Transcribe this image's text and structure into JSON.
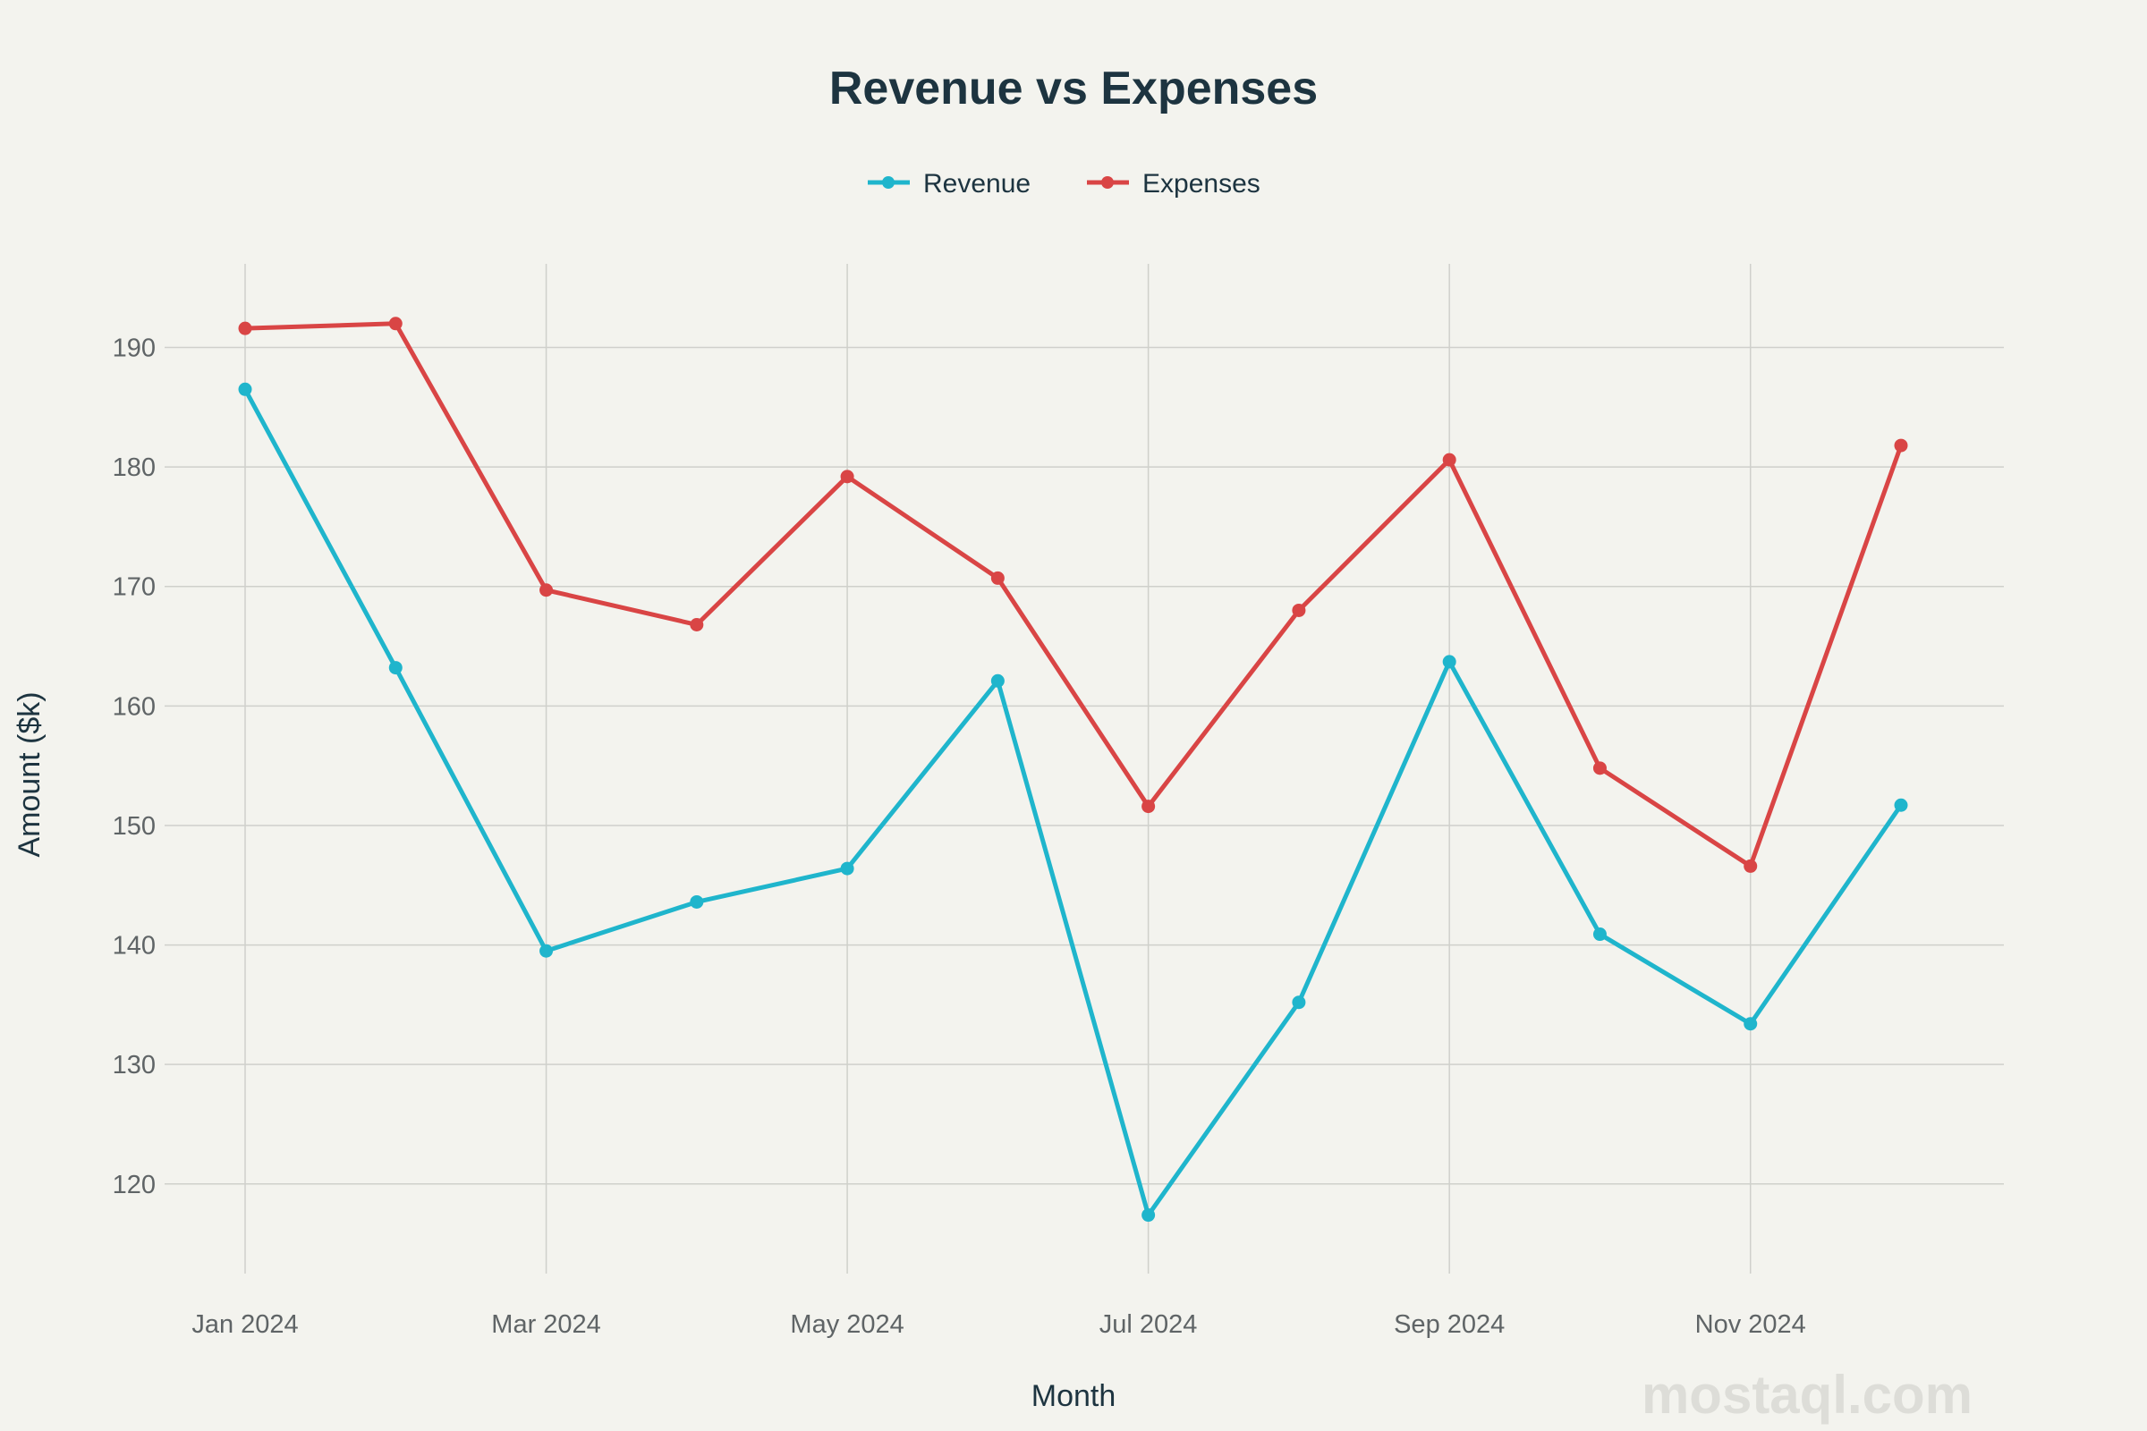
{
  "chart_data": {
    "type": "line",
    "title": "Revenue vs Expenses",
    "xlabel": "Month",
    "ylabel": "Amount ($k)",
    "x": [
      "Jan 2024",
      "Feb 2024",
      "Mar 2024",
      "Apr 2024",
      "May 2024",
      "Jun 2024",
      "Jul 2024",
      "Aug 2024",
      "Sep 2024",
      "Oct 2024",
      "Nov 2024",
      "Dec 2024"
    ],
    "x_tick_labels": [
      "Jan 2024",
      "Mar 2024",
      "May 2024",
      "Jul 2024",
      "Sep 2024",
      "Nov 2024"
    ],
    "y_ticks": [
      120,
      130,
      140,
      150,
      160,
      170,
      180,
      190
    ],
    "ylim": [
      112.5,
      197
    ],
    "grid": true,
    "legend_position": "top-center",
    "series": [
      {
        "name": "Revenue",
        "color": "#1fb5cc",
        "values": [
          186.5,
          163.2,
          139.5,
          143.6,
          146.4,
          162.1,
          117.4,
          135.2,
          163.7,
          140.9,
          133.4,
          151.7
        ]
      },
      {
        "name": "Expenses",
        "color": "#d94545",
        "values": [
          191.6,
          192.0,
          169.7,
          166.8,
          179.2,
          170.7,
          151.6,
          168.0,
          180.6,
          154.8,
          146.6,
          181.8
        ]
      }
    ]
  },
  "watermark": "mostaql.com"
}
